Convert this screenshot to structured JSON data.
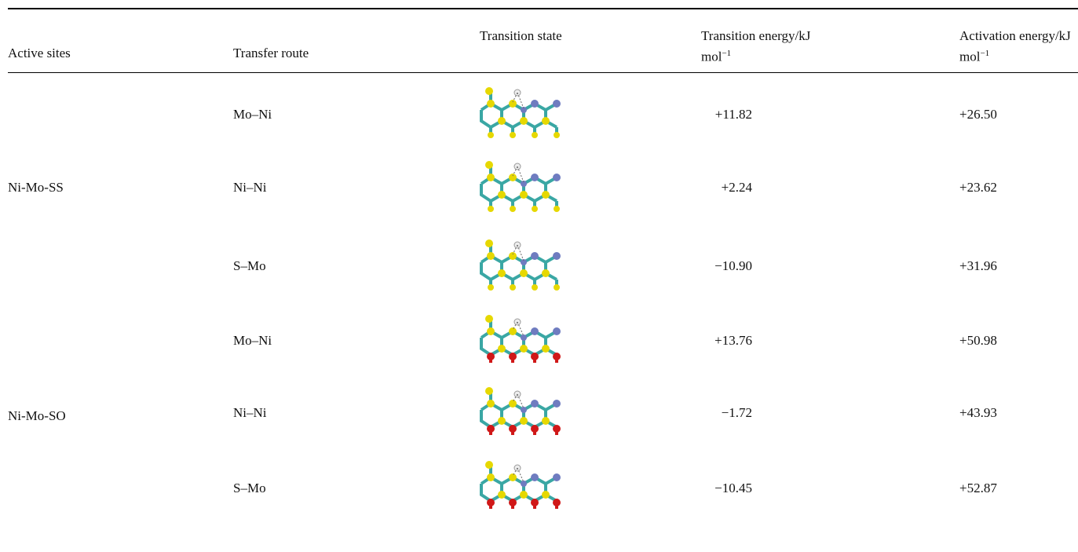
{
  "table": {
    "header": [
      "Active sites",
      "Transfer route",
      "Transition state",
      {
        "text": "Transition energy/kJ mol",
        "sup": "−1"
      },
      {
        "text": "Activation energy/kJ mol",
        "sup": "−1"
      }
    ],
    "groups": [
      {
        "site": "Ni-Mo-SS",
        "rows": [
          {
            "route": "Mo–Ni",
            "transition": "+11.82",
            "activation": "+26.50"
          },
          {
            "route": "Ni–Ni",
            "transition": "+2.24",
            "activation": "+23.62"
          },
          {
            "route": "S–Mo",
            "transition": "−10.90",
            "activation": "+31.96"
          }
        ]
      },
      {
        "site": "Ni-Mo-SO",
        "rows": [
          {
            "route": "Mo–Ni",
            "transition": "+13.76",
            "activation": "+50.98"
          },
          {
            "route": "Ni–Ni",
            "transition": "−1.72",
            "activation": "+43.93"
          },
          {
            "route": "S–Mo",
            "transition": "−10.45",
            "activation": "+52.87"
          }
        ]
      }
    ]
  }
}
